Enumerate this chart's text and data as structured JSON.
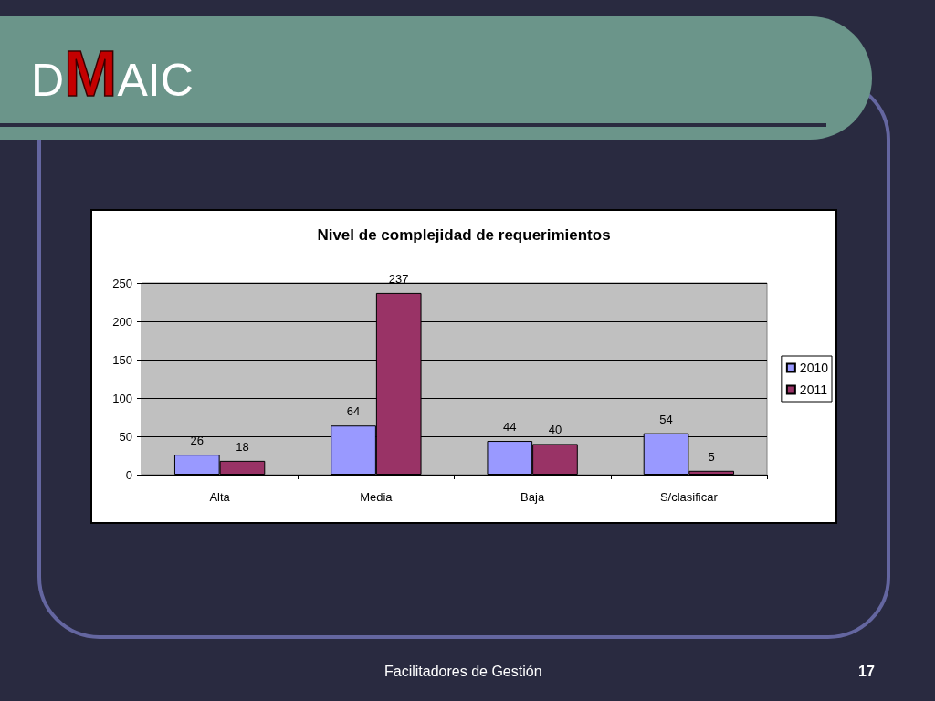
{
  "chart_data": {
    "type": "bar",
    "title": "Nivel de complejidad de requerimientos",
    "categories": [
      "Alta",
      "Media",
      "Baja",
      "S/clasificar"
    ],
    "series": [
      {
        "name": "2010",
        "color": "#9999ff",
        "values": [
          26,
          64,
          44,
          54
        ]
      },
      {
        "name": "2011",
        "color": "#993366",
        "values": [
          18,
          237,
          40,
          5
        ]
      }
    ],
    "ylim": [
      0,
      250
    ],
    "yticks": [
      0,
      50,
      100,
      150,
      200,
      250
    ],
    "grid": "y",
    "legend": "right",
    "data_labels": true,
    "annotations": [
      "DMAIC",
      "Facilitadores de Gestión",
      "17"
    ]
  }
}
